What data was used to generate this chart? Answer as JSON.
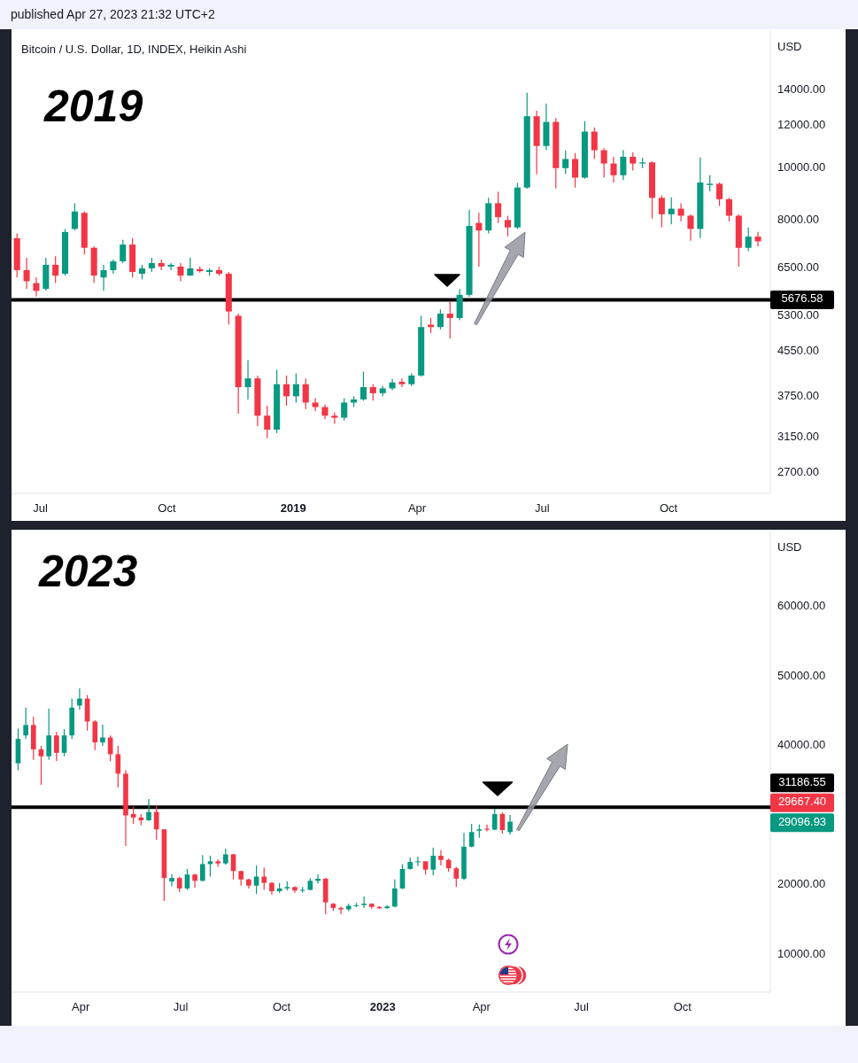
{
  "chart_data": [
    {
      "type": "candlestick",
      "title": "Bitcoin / U.S. Dollar, 1D, INDEX, Heikin Ashi",
      "subtitle": "2019",
      "ylabel": "USD",
      "annotations": [
        "published Apr 27, 2023 21:32 UTC+2"
      ],
      "x": [
        "2018-06-14",
        "2018-06-21",
        "2018-06-28",
        "2018-07-05",
        "2018-07-12",
        "2018-07-19",
        "2018-07-26",
        "2018-08-02",
        "2018-08-09",
        "2018-08-16",
        "2018-08-23",
        "2018-08-30",
        "2018-09-06",
        "2018-09-13",
        "2018-09-20",
        "2018-09-27",
        "2018-10-04",
        "2018-10-11",
        "2018-10-18",
        "2018-10-25",
        "2018-11-01",
        "2018-11-08",
        "2018-11-15",
        "2018-11-22",
        "2018-11-29",
        "2018-12-06",
        "2018-12-13",
        "2018-12-20",
        "2018-12-27",
        "2019-01-03",
        "2019-01-10",
        "2019-01-17",
        "2019-01-24",
        "2019-01-31",
        "2019-02-07",
        "2019-02-14",
        "2019-02-21",
        "2019-02-28",
        "2019-03-07",
        "2019-03-14",
        "2019-03-21",
        "2019-03-28",
        "2019-04-04",
        "2019-04-11",
        "2019-04-18",
        "2019-04-25",
        "2019-05-02",
        "2019-05-09",
        "2019-05-16",
        "2019-05-23",
        "2019-05-30",
        "2019-06-06",
        "2019-06-13",
        "2019-06-20",
        "2019-06-27",
        "2019-07-04",
        "2019-07-11",
        "2019-07-18",
        "2019-07-25",
        "2019-08-01",
        "2019-08-08",
        "2019-08-15",
        "2019-08-22",
        "2019-08-29",
        "2019-09-05",
        "2019-09-12",
        "2019-09-19",
        "2019-09-26",
        "2019-10-03",
        "2019-10-10",
        "2019-10-17",
        "2019-10-24",
        "2019-10-31",
        "2019-11-07",
        "2019-11-14",
        "2019-11-21",
        "2019-11-28",
        "2019-12-05"
      ],
      "ohlc": [
        [
          7400,
          7550,
          6250,
          6450
        ],
        [
          6450,
          6800,
          5950,
          6150
        ],
        [
          6100,
          6250,
          5760,
          5900
        ],
        [
          5950,
          6800,
          5900,
          6600
        ],
        [
          6600,
          6850,
          6100,
          6300
        ],
        [
          6350,
          7700,
          6300,
          7600
        ],
        [
          7700,
          8600,
          7650,
          8300
        ],
        [
          8250,
          8300,
          6900,
          7100
        ],
        [
          7100,
          7150,
          6100,
          6300
        ],
        [
          6250,
          6600,
          5900,
          6450
        ],
        [
          6450,
          6750,
          6350,
          6700
        ],
        [
          6700,
          7350,
          6650,
          7200
        ],
        [
          7200,
          7400,
          6250,
          6400
        ],
        [
          6350,
          6600,
          6200,
          6500
        ],
        [
          6500,
          6800,
          6400,
          6650
        ],
        [
          6650,
          6750,
          6450,
          6550
        ],
        [
          6550,
          6650,
          6450,
          6600
        ],
        [
          6550,
          6650,
          6150,
          6300
        ],
        [
          6300,
          6800,
          6300,
          6500
        ],
        [
          6480,
          6550,
          6380,
          6420
        ],
        [
          6400,
          6500,
          6300,
          6450
        ],
        [
          6450,
          6550,
          6300,
          6350
        ],
        [
          6350,
          6400,
          5100,
          5400
        ],
        [
          5300,
          5350,
          3480,
          3900
        ],
        [
          3900,
          4380,
          3700,
          4050
        ],
        [
          4050,
          4100,
          3300,
          3450
        ],
        [
          3450,
          3600,
          3130,
          3250
        ],
        [
          3250,
          4200,
          3200,
          3950
        ],
        [
          3950,
          4100,
          3600,
          3750
        ],
        [
          3750,
          4140,
          3650,
          3950
        ],
        [
          3950,
          4050,
          3550,
          3650
        ],
        [
          3650,
          3720,
          3520,
          3580
        ],
        [
          3580,
          3620,
          3400,
          3450
        ],
        [
          3450,
          3500,
          3330,
          3420
        ],
        [
          3420,
          3720,
          3380,
          3650
        ],
        [
          3650,
          3750,
          3580,
          3700
        ],
        [
          3700,
          4170,
          3680,
          3900
        ],
        [
          3900,
          3950,
          3680,
          3800
        ],
        [
          3800,
          3920,
          3750,
          3880
        ],
        [
          3880,
          4040,
          3850,
          3980
        ],
        [
          3990,
          4050,
          3900,
          3950
        ],
        [
          3950,
          4140,
          3920,
          4100
        ],
        [
          4100,
          5300,
          4080,
          5050
        ],
        [
          5100,
          5250,
          4920,
          5050
        ],
        [
          5050,
          5450,
          5000,
          5350
        ],
        [
          5350,
          5650,
          4810,
          5250
        ],
        [
          5250,
          5950,
          5200,
          5800
        ],
        [
          5800,
          8360,
          5750,
          7800
        ],
        [
          7900,
          8250,
          6550,
          7650
        ],
        [
          7650,
          8800,
          7550,
          8600
        ],
        [
          8600,
          9030,
          7900,
          8100
        ],
        [
          8000,
          8150,
          7460,
          7750
        ],
        [
          7750,
          9380,
          7700,
          9200
        ],
        [
          9200,
          13820,
          9150,
          12500
        ],
        [
          12500,
          12800,
          9740,
          11000
        ],
        [
          11000,
          13200,
          10800,
          12200
        ],
        [
          12200,
          12400,
          9160,
          10000
        ],
        [
          10000,
          10790,
          9750,
          10400
        ],
        [
          10400,
          10670,
          9200,
          9600
        ],
        [
          9600,
          12240,
          9550,
          11700
        ],
        [
          11700,
          11900,
          10400,
          10800
        ],
        [
          10800,
          10900,
          9600,
          10200
        ],
        [
          10200,
          10500,
          9400,
          9700
        ],
        [
          9700,
          10800,
          9500,
          10500
        ],
        [
          10500,
          10700,
          9900,
          10200
        ],
        [
          10200,
          10450,
          10000,
          10250
        ],
        [
          10250,
          10300,
          8050,
          8800
        ],
        [
          8800,
          8900,
          7750,
          8200
        ],
        [
          8200,
          8820,
          7850,
          8400
        ],
        [
          8400,
          8600,
          7950,
          8150
        ],
        [
          8150,
          8200,
          7320,
          7700
        ],
        [
          7700,
          10470,
          7400,
          9400
        ],
        [
          9300,
          9700,
          9050,
          9350
        ],
        [
          9350,
          9400,
          8500,
          8750
        ],
        [
          8750,
          8800,
          7950,
          8150
        ],
        [
          8150,
          8200,
          6550,
          7100
        ],
        [
          7100,
          7750,
          7000,
          7450
        ],
        [
          7450,
          7600,
          7150,
          7300
        ]
      ],
      "colors": [
        "#f23645",
        "#f23645",
        "#f23645",
        "#089981",
        "#f23645",
        "#089981",
        "#089981",
        "#f23645",
        "#f23645",
        "#089981",
        "#089981",
        "#089981",
        "#f23645",
        "#089981",
        "#089981",
        "#f23645",
        "#089981",
        "#f23645",
        "#089981",
        "#f23645",
        "#089981",
        "#f23645",
        "#f23645",
        "#f23645",
        "#089981",
        "#f23645",
        "#f23645",
        "#089981",
        "#f23645",
        "#089981",
        "#f23645",
        "#f23645",
        "#f23645",
        "#f23645",
        "#089981",
        "#089981",
        "#089981",
        "#f23645",
        "#089981",
        "#089981",
        "#f23645",
        "#089981",
        "#089981",
        "#f23645",
        "#089981",
        "#f23645",
        "#089981",
        "#089981",
        "#f23645",
        "#089981",
        "#f23645",
        "#f23645",
        "#089981",
        "#089981",
        "#f23645",
        "#089981",
        "#f23645",
        "#089981",
        "#f23645",
        "#089981",
        "#f23645",
        "#f23645",
        "#f23645",
        "#089981",
        "#f23645",
        "#089981",
        "#f23645",
        "#f23645",
        "#089981",
        "#f23645",
        "#f23645",
        "#089981",
        "#089981",
        "#f23645",
        "#f23645",
        "#f23645",
        "#089981",
        "#f23645"
      ],
      "xlim": [
        "2018-06-10",
        "2019-12-14"
      ],
      "xticks": [
        {
          "value": "2018-07-01",
          "label": "Jul"
        },
        {
          "value": "2018-10-01",
          "label": "Oct"
        },
        {
          "value": "2019-01-01",
          "label": "2019"
        },
        {
          "value": "2019-04-01",
          "label": "Apr"
        },
        {
          "value": "2019-07-01",
          "label": "Jul"
        },
        {
          "value": "2019-10-01",
          "label": "Oct"
        }
      ],
      "ylim": [
        2470,
        18100
      ],
      "log": "y",
      "yticks": [
        {
          "value": 2700,
          "label": "2700.00"
        },
        {
          "value": 3150,
          "label": "3150.00"
        },
        {
          "value": 3750,
          "label": "3750.00"
        },
        {
          "value": 4550,
          "label": "4550.00"
        },
        {
          "value": 5300,
          "label": "5300.00"
        },
        {
          "value": 6500,
          "label": "6500.00"
        },
        {
          "value": 8000,
          "label": "8000.00"
        },
        {
          "value": 10000,
          "label": "10000.00"
        },
        {
          "value": 12000,
          "label": "12000.00"
        },
        {
          "value": 14000,
          "label": "14000.00"
        }
      ],
      "ref_lines": [
        {
          "axis": "y",
          "value": 5676.58,
          "label": "5676.58",
          "color": "#000000"
        }
      ]
    },
    {
      "type": "candlestick",
      "subtitle": "2023",
      "ylabel": "USD",
      "annotations": [
        "29667.40",
        "29096.93"
      ],
      "x": [
        "2022-02-03",
        "2022-02-10",
        "2022-02-17",
        "2022-02-24",
        "2022-03-03",
        "2022-03-10",
        "2022-03-17",
        "2022-03-24",
        "2022-03-31",
        "2022-04-07",
        "2022-04-14",
        "2022-04-21",
        "2022-04-28",
        "2022-05-05",
        "2022-05-12",
        "2022-05-19",
        "2022-05-26",
        "2022-06-02",
        "2022-06-09",
        "2022-06-16",
        "2022-06-23",
        "2022-06-30",
        "2022-07-07",
        "2022-07-14",
        "2022-07-21",
        "2022-07-28",
        "2022-08-04",
        "2022-08-11",
        "2022-08-18",
        "2022-08-25",
        "2022-09-01",
        "2022-09-08",
        "2022-09-15",
        "2022-09-22",
        "2022-09-29",
        "2022-10-06",
        "2022-10-13",
        "2022-10-20",
        "2022-10-27",
        "2022-11-03",
        "2022-11-10",
        "2022-11-17",
        "2022-11-24",
        "2022-12-01",
        "2022-12-08",
        "2022-12-15",
        "2022-12-22",
        "2022-12-29",
        "2023-01-05",
        "2023-01-12",
        "2023-01-19",
        "2023-01-26",
        "2023-02-02",
        "2023-02-09",
        "2023-02-16",
        "2023-02-23",
        "2023-03-02",
        "2023-03-09",
        "2023-03-16",
        "2023-03-23",
        "2023-03-30",
        "2023-04-06",
        "2023-04-13",
        "2023-04-20",
        "2023-04-27"
      ],
      "ohlc": [
        [
          37500,
          42500,
          36500,
          41000
        ],
        [
          41500,
          45500,
          41000,
          43000
        ],
        [
          43000,
          44200,
          38000,
          39500
        ],
        [
          39500,
          40000,
          34400,
          38500
        ],
        [
          38500,
          45350,
          38000,
          41500
        ],
        [
          41500,
          42000,
          37800,
          39000
        ],
        [
          39000,
          42400,
          38500,
          41500
        ],
        [
          41500,
          46800,
          41000,
          45500
        ],
        [
          45800,
          48280,
          45200,
          46800
        ],
        [
          46800,
          47300,
          42200,
          43500
        ],
        [
          43500,
          43700,
          39400,
          40500
        ],
        [
          40500,
          43060,
          40000,
          41200
        ],
        [
          41200,
          41500,
          37800,
          38800
        ],
        [
          38800,
          40000,
          34000,
          36000
        ],
        [
          36000,
          36500,
          25600,
          30000
        ],
        [
          30200,
          31300,
          28800,
          29700
        ],
        [
          29700,
          30200,
          28600,
          29300
        ],
        [
          29300,
          32360,
          29200,
          30500
        ],
        [
          30500,
          31500,
          26500,
          28000
        ],
        [
          28000,
          28000,
          17710,
          21000
        ],
        [
          20500,
          21530,
          19800,
          21000
        ],
        [
          21000,
          21200,
          18980,
          19500
        ],
        [
          19500,
          22300,
          19300,
          21500
        ],
        [
          21500,
          21600,
          19600,
          20600
        ],
        [
          20600,
          24300,
          20500,
          23000
        ],
        [
          23000,
          24200,
          21200,
          23400
        ],
        [
          23400,
          23700,
          22600,
          23100
        ],
        [
          23100,
          25220,
          22900,
          24400
        ],
        [
          24400,
          24500,
          20800,
          22000
        ],
        [
          22000,
          22000,
          19900,
          20800
        ],
        [
          20800,
          20900,
          19500,
          19900
        ],
        [
          19900,
          22800,
          18700,
          21200
        ],
        [
          21200,
          22500,
          19300,
          20300
        ],
        [
          20300,
          20400,
          18600,
          19100
        ],
        [
          19100,
          20300,
          18900,
          19500
        ],
        [
          19500,
          20500,
          19200,
          19700
        ],
        [
          19700,
          19800,
          18900,
          19200
        ],
        [
          19200,
          19700,
          18900,
          19300
        ],
        [
          19300,
          21000,
          19200,
          20600
        ],
        [
          20600,
          21530,
          20200,
          20900
        ],
        [
          20900,
          21000,
          15800,
          17500
        ],
        [
          17300,
          17400,
          16300,
          16700
        ],
        [
          16700,
          16900,
          15800,
          16500
        ],
        [
          16500,
          17300,
          16200,
          17000
        ],
        [
          17000,
          17400,
          16800,
          17100
        ],
        [
          17100,
          18350,
          16700,
          17300
        ],
        [
          17300,
          17350,
          16600,
          16850
        ],
        [
          16850,
          16950,
          16550,
          16650
        ],
        [
          16650,
          17100,
          16600,
          16900
        ],
        [
          16900,
          20800,
          16800,
          19500
        ],
        [
          19500,
          23000,
          19400,
          22300
        ],
        [
          22300,
          23950,
          22200,
          23300
        ],
        [
          23300,
          24080,
          22700,
          23400
        ],
        [
          23400,
          23400,
          21500,
          22200
        ],
        [
          22200,
          25350,
          21400,
          24200
        ],
        [
          24200,
          25000,
          22800,
          23600
        ],
        [
          23600,
          23800,
          21900,
          22400
        ],
        [
          22400,
          22600,
          19700,
          20900
        ],
        [
          20900,
          27500,
          20700,
          25500
        ],
        [
          25500,
          28800,
          25400,
          27600
        ],
        [
          27800,
          28700,
          26800,
          28000
        ],
        [
          28100,
          28700,
          27700,
          27950
        ],
        [
          27950,
          30950,
          27900,
          30200
        ],
        [
          30200,
          30400,
          27400,
          27900
        ],
        [
          27600,
          30060,
          27260,
          29100
        ]
      ],
      "colors": [
        "#089981",
        "#089981",
        "#f23645",
        "#f23645",
        "#089981",
        "#f23645",
        "#089981",
        "#089981",
        "#089981",
        "#f23645",
        "#f23645",
        "#089981",
        "#f23645",
        "#f23645",
        "#f23645",
        "#f23645",
        "#f23645",
        "#089981",
        "#f23645",
        "#f23645",
        "#089981",
        "#f23645",
        "#089981",
        "#f23645",
        "#089981",
        "#089981",
        "#f23645",
        "#089981",
        "#f23645",
        "#f23645",
        "#f23645",
        "#089981",
        "#f23645",
        "#f23645",
        "#089981",
        "#089981",
        "#f23645",
        "#089981",
        "#089981",
        "#089981",
        "#f23645",
        "#f23645",
        "#f23645",
        "#089981",
        "#089981",
        "#089981",
        "#f23645",
        "#f23645",
        "#089981",
        "#089981",
        "#089981",
        "#089981",
        "#089981",
        "#f23645",
        "#089981",
        "#f23645",
        "#f23645",
        "#f23645",
        "#089981",
        "#089981",
        "#089981",
        "#f23645",
        "#089981",
        "#f23645",
        "#089981"
      ],
      "xlim": [
        "2022-01-28",
        "2023-12-20"
      ],
      "xticks": [
        {
          "value": "2022-04-01",
          "label": "Apr"
        },
        {
          "value": "2022-07-01",
          "label": "Jul"
        },
        {
          "value": "2022-10-01",
          "label": "Oct"
        },
        {
          "value": "2023-01-01",
          "label": "2023"
        },
        {
          "value": "2023-04-01",
          "label": "Apr"
        },
        {
          "value": "2023-07-01",
          "label": "Jul"
        },
        {
          "value": "2023-10-01",
          "label": "Oct"
        }
      ],
      "ylim": [
        4590,
        70950
      ],
      "yticks": [
        {
          "value": 10000,
          "label": "10000.00"
        },
        {
          "value": 20000,
          "label": "20000.00"
        },
        {
          "value": 40000,
          "label": "40000.00"
        },
        {
          "value": 50000,
          "label": "50000.00"
        },
        {
          "value": 60000,
          "label": "60000.00"
        }
      ],
      "ref_lines": [
        {
          "axis": "y",
          "value": 31186.55,
          "label": "31186.55",
          "color": "#000000"
        }
      ]
    }
  ]
}
